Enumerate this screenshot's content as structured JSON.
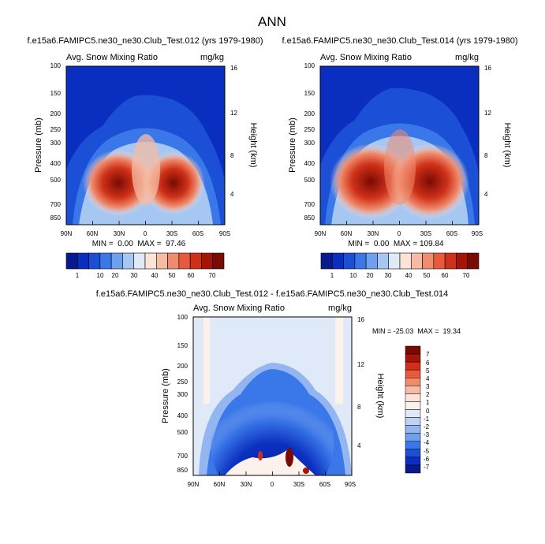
{
  "colors": {
    "frame": "#000000",
    "background": "#ffffff"
  },
  "chart_data": {
    "type": "heatmap",
    "title": "ANN",
    "panels": [
      {
        "name": "panel-top-left",
        "case_title": "f.e15a6.FAMIPC5.ne30_ne30.Club_Test.012 (yrs 1979-1980)",
        "field_label": "Avg. Snow Mixing Ratio",
        "units_label": "mg/kg",
        "ylabel": "Pressure (mb)",
        "y2label": "Height (km)",
        "x_ticks": [
          "90N",
          "60N",
          "30N",
          "0",
          "30S",
          "60S",
          "90S"
        ],
        "y_ticks": [
          "100",
          "150",
          "200",
          "250",
          "300",
          "400",
          "500",
          "700",
          "850"
        ],
        "y2_ticks": [
          "16",
          "12",
          "8",
          "4"
        ],
        "stats": "MIN =  0.00  MAX =  97.46",
        "min": 0.0,
        "max": 97.46
      },
      {
        "name": "panel-top-right",
        "case_title": "f.e15a6.FAMIPC5.ne30_ne30.Club_Test.014 (yrs 1979-1980)",
        "field_label": "Avg. Snow Mixing Ratio",
        "units_label": "mg/kg",
        "ylabel": "Pressure (mb)",
        "y2label": "Height (km)",
        "x_ticks": [
          "90N",
          "60N",
          "30N",
          "0",
          "30S",
          "60S",
          "90S"
        ],
        "y_ticks": [
          "100",
          "150",
          "200",
          "250",
          "300",
          "400",
          "500",
          "700",
          "850"
        ],
        "y2_ticks": [
          "16",
          "12",
          "8",
          "4"
        ],
        "stats": "MIN =  0.00  MAX = 109.84",
        "min": 0.0,
        "max": 109.84
      },
      {
        "name": "panel-difference",
        "case_title": "f.e15a6.FAMIPC5.ne30_ne30.Club_Test.012 - f.e15a6.FAMIPC5.ne30_ne30.Club_Test.014",
        "field_label": "Avg. Snow Mixing Ratio",
        "units_label": "mg/kg",
        "ylabel": "Pressure (mb)",
        "y2label": "Height (km)",
        "x_ticks": [
          "90N",
          "60N",
          "30N",
          "0",
          "30S",
          "60S",
          "90S"
        ],
        "y_ticks": [
          "100",
          "150",
          "200",
          "250",
          "300",
          "400",
          "500",
          "700",
          "850"
        ],
        "y2_ticks": [
          "16",
          "12",
          "8",
          "4"
        ],
        "stats": "MIN = -25.03  MAX =  19.34",
        "min": -25.03,
        "max": 19.34
      }
    ],
    "colorbar_main": {
      "labels": [
        "1",
        "10",
        "20",
        "30",
        "40",
        "50",
        "60",
        "70"
      ],
      "colors": [
        "#08198f",
        "#0a2fc0",
        "#1a4fd6",
        "#3a77e8",
        "#6f9fef",
        "#a7c7f3",
        "#dfe9f8",
        "#fbe3d8",
        "#f6bba4",
        "#f08c6e",
        "#e85a3e",
        "#cf3118",
        "#a61408",
        "#7a0a04"
      ]
    },
    "colorbar_diff": {
      "labels": [
        "7",
        "6",
        "5",
        "4",
        "3",
        "2",
        "1",
        "0",
        "-1",
        "-2",
        "-3",
        "-4",
        "-5",
        "-6",
        "-7"
      ],
      "colors": [
        "#7a0a04",
        "#a61408",
        "#cf3118",
        "#e85a3e",
        "#f08c6e",
        "#f6bba4",
        "#fbe3d8",
        "#fdf1ec",
        "#dfe9f8",
        "#bcd3f5",
        "#94b6f0",
        "#6f9fef",
        "#3a77e8",
        "#1a4fd6",
        "#0a2fc0",
        "#08198f"
      ]
    }
  }
}
